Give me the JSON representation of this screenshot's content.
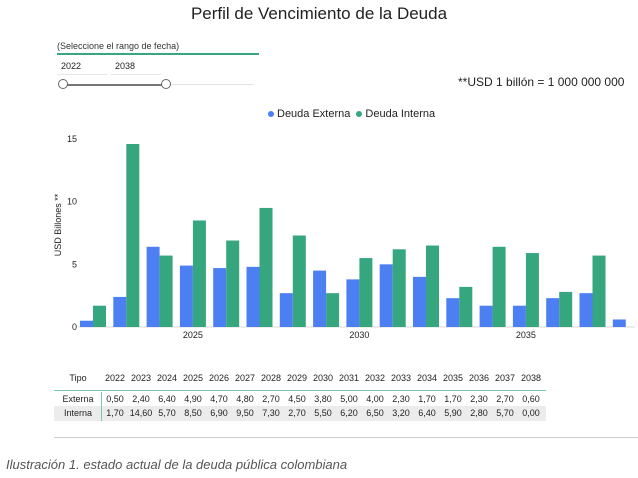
{
  "title": "Perfil de Vencimiento de la Deuda",
  "date_range": {
    "label": "(Seleccione el rango de fecha)",
    "start": "2022",
    "end": "2038"
  },
  "note": "**USD 1 billón = 1 000 000 000",
  "legend": [
    "Deuda Externa",
    "Deuda Interna"
  ],
  "colors": {
    "externa": "#4c7ff2",
    "interna": "#35a67d",
    "accent": "#3aa57f"
  },
  "chart_data": {
    "type": "bar",
    "ylabel": "USD Billones **",
    "ylim": [
      0,
      16
    ],
    "yticks": [
      "0",
      "5",
      "10",
      "15"
    ],
    "xtick_labels": [
      "2025",
      "2030",
      "2035"
    ],
    "categories": [
      "2022",
      "2023",
      "2024",
      "2025",
      "2026",
      "2027",
      "2028",
      "2029",
      "2030",
      "2031",
      "2032",
      "2033",
      "2034",
      "2035",
      "2036",
      "2037",
      "2038"
    ],
    "series": [
      {
        "name": "Deuda Externa",
        "values": [
          0.5,
          2.4,
          6.4,
          4.9,
          4.7,
          4.8,
          2.7,
          4.5,
          3.8,
          5.0,
          4.0,
          2.3,
          1.7,
          1.7,
          2.3,
          2.7,
          0.6
        ]
      },
      {
        "name": "Deuda Interna",
        "values": [
          1.7,
          14.6,
          5.7,
          8.5,
          6.9,
          9.5,
          7.3,
          2.7,
          5.5,
          6.2,
          6.5,
          3.2,
          6.4,
          5.9,
          2.8,
          5.7,
          0.0
        ]
      }
    ]
  },
  "table": {
    "header_label": "Tipo",
    "years": [
      "2022",
      "2023",
      "2024",
      "2025",
      "2026",
      "2027",
      "2028",
      "2029",
      "2030",
      "2031",
      "2032",
      "2033",
      "2034",
      "2035",
      "2036",
      "2037",
      "2038"
    ],
    "rows": [
      {
        "label": "Externa",
        "values": [
          "0,50",
          "2,40",
          "6,40",
          "4,90",
          "4,70",
          "4,80",
          "2,70",
          "4,50",
          "3,80",
          "5,00",
          "4,00",
          "2,30",
          "1,70",
          "1,70",
          "2,30",
          "2,70",
          "0,60"
        ]
      },
      {
        "label": "Interna",
        "values": [
          "1,70",
          "14,60",
          "5,70",
          "8,50",
          "6,90",
          "9,50",
          "7,30",
          "2,70",
          "5,50",
          "6,20",
          "6,50",
          "3,20",
          "6,40",
          "5,90",
          "2,80",
          "5,70",
          "0,00"
        ]
      }
    ]
  },
  "caption": "Ilustración 1. estado actual de la deuda pública colombiana"
}
